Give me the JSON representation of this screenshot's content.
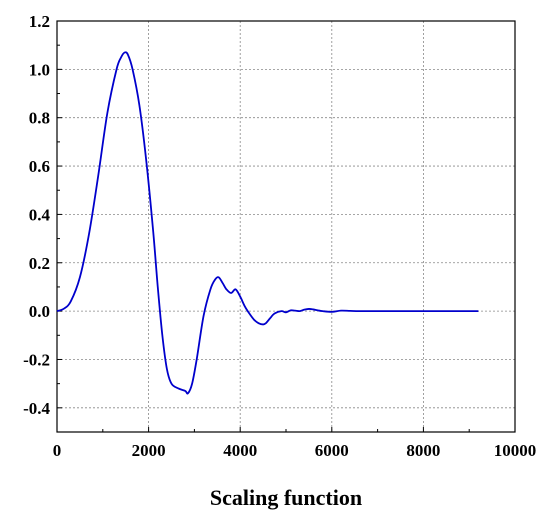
{
  "chart_data": {
    "type": "line",
    "title": "",
    "xlabel": "Scaling function",
    "ylabel": "",
    "xlim": [
      0,
      10000
    ],
    "ylim": [
      -0.5,
      1.2
    ],
    "xticks": [
      0,
      2000,
      4000,
      6000,
      8000,
      10000
    ],
    "yticks": [
      -0.4,
      -0.2,
      0.0,
      0.2,
      0.4,
      0.6,
      0.8,
      1.0,
      1.2
    ],
    "xtick_labels": [
      "0",
      "2000",
      "4000",
      "6000",
      "8000",
      "10000"
    ],
    "ytick_labels": [
      "-0.4",
      "-0.2",
      "0.0",
      "0.2",
      "0.4",
      "0.6",
      "0.8",
      "1.0",
      "1.2"
    ],
    "grid": true,
    "legend": false,
    "series": [
      {
        "color": "#0000cc",
        "x": [
          0,
          150,
          300,
          500,
          700,
          900,
          1100,
          1300,
          1400,
          1480,
          1550,
          1650,
          1800,
          1950,
          2100,
          2200,
          2300,
          2400,
          2500,
          2650,
          2800,
          2860,
          2950,
          3050,
          3200,
          3350,
          3450,
          3530,
          3620,
          3700,
          3800,
          3900,
          4000,
          4100,
          4200,
          4300,
          4400,
          4500,
          4560,
          4650,
          4750,
          4900,
          5000,
          5100,
          5200,
          5300,
          5400,
          5500,
          5600,
          5700,
          5800,
          6000,
          6200,
          6400,
          6600,
          7000,
          7500,
          8000,
          8500,
          9000,
          9200
        ],
        "y": [
          0.0,
          0.01,
          0.04,
          0.14,
          0.32,
          0.56,
          0.82,
          1.0,
          1.05,
          1.07,
          1.06,
          1.0,
          0.85,
          0.62,
          0.33,
          0.1,
          -0.1,
          -0.24,
          -0.3,
          -0.32,
          -0.33,
          -0.34,
          -0.3,
          -0.2,
          -0.02,
          0.09,
          0.13,
          0.14,
          0.115,
          0.09,
          0.075,
          0.09,
          0.06,
          0.02,
          -0.01,
          -0.035,
          -0.05,
          -0.055,
          -0.05,
          -0.03,
          -0.01,
          0.0,
          -0.005,
          0.003,
          0.002,
          0.0,
          0.006,
          0.009,
          0.007,
          0.003,
          0.0,
          -0.003,
          0.002,
          0.001,
          0.0,
          0.0,
          0.0,
          0.0,
          0.0,
          0.0,
          0.0
        ]
      }
    ]
  }
}
